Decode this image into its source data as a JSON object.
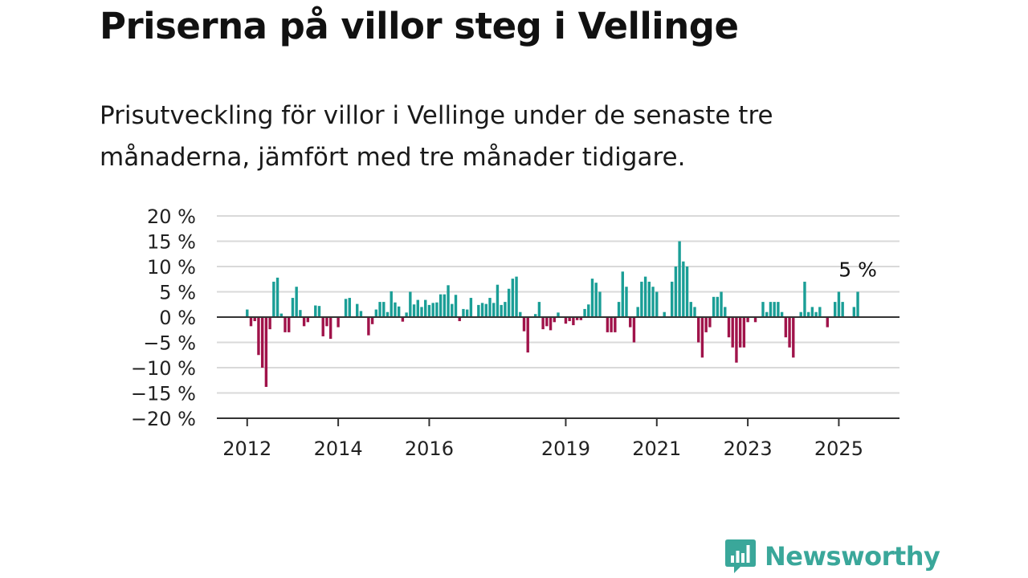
{
  "header": {
    "title": "Priserna på villor steg i Vellinge",
    "subtitle": "Prisutveckling för villor i Vellinge under de senaste tre månaderna, jämfört med tre månader tidigare."
  },
  "colors": {
    "positive": "#1a9e96",
    "negative": "#a0134a",
    "grid": "#d9d9d9",
    "axis": "#333333",
    "logo": "#3aa79a"
  },
  "brand": {
    "name": "Newsworthy",
    "icon": "bar-chart-speech-bubble-icon"
  },
  "chart_data": {
    "type": "bar",
    "title": "Priserna på villor steg i Vellinge",
    "ylabel": "",
    "xlabel": "",
    "ylim": [
      -20,
      20
    ],
    "yticks": [
      20,
      15,
      10,
      5,
      0,
      -5,
      -10,
      -15,
      -20
    ],
    "ytick_labels": [
      "20 %",
      "15 %",
      "10 %",
      "5 %",
      "0 %",
      "−5 %",
      "−10 %",
      "−15 %",
      "−20 %"
    ],
    "xlim": [
      "2011-05",
      "2026-05"
    ],
    "xticks": [
      {
        "date": "2012-01",
        "label": "2012"
      },
      {
        "date": "2014-01",
        "label": "2014"
      },
      {
        "date": "2016-01",
        "label": "2016"
      },
      {
        "date": "2019-01",
        "label": "2019"
      },
      {
        "date": "2021-01",
        "label": "2021"
      },
      {
        "date": "2023-01",
        "label": "2023"
      },
      {
        "date": "2025-01",
        "label": "2025"
      }
    ],
    "grid": true,
    "annotation": {
      "date": "2025-06",
      "label": "5 %"
    },
    "series": [
      {
        "points": [
          {
            "date": "2012-01",
            "value": 1.5
          },
          {
            "date": "2012-02",
            "value": -1.8
          },
          {
            "date": "2012-03",
            "value": -0.8
          },
          {
            "date": "2012-04",
            "value": -7.5
          },
          {
            "date": "2012-05",
            "value": -10.0
          },
          {
            "date": "2012-06",
            "value": -13.8
          },
          {
            "date": "2012-07",
            "value": -2.4
          },
          {
            "date": "2012-08",
            "value": 7.0
          },
          {
            "date": "2012-09",
            "value": 7.8
          },
          {
            "date": "2012-10",
            "value": 0.7
          },
          {
            "date": "2012-11",
            "value": -3.0
          },
          {
            "date": "2012-12",
            "value": -3.0
          },
          {
            "date": "2013-01",
            "value": 3.8
          },
          {
            "date": "2013-02",
            "value": 6.0
          },
          {
            "date": "2013-03",
            "value": 1.4
          },
          {
            "date": "2013-04",
            "value": -1.8
          },
          {
            "date": "2013-05",
            "value": -1.0
          },
          {
            "date": "2013-07",
            "value": 2.3
          },
          {
            "date": "2013-08",
            "value": 2.2
          },
          {
            "date": "2013-09",
            "value": -3.8
          },
          {
            "date": "2013-10",
            "value": -1.8
          },
          {
            "date": "2013-11",
            "value": -4.3
          },
          {
            "date": "2014-01",
            "value": -2.0
          },
          {
            "date": "2014-03",
            "value": 3.6
          },
          {
            "date": "2014-04",
            "value": 3.8
          },
          {
            "date": "2014-06",
            "value": 2.6
          },
          {
            "date": "2014-07",
            "value": 1.2
          },
          {
            "date": "2014-09",
            "value": -3.6
          },
          {
            "date": "2014-10",
            "value": -1.4
          },
          {
            "date": "2014-11",
            "value": 1.5
          },
          {
            "date": "2014-12",
            "value": 3.0
          },
          {
            "date": "2015-01",
            "value": 3.0
          },
          {
            "date": "2015-02",
            "value": 1.0
          },
          {
            "date": "2015-03",
            "value": 5.1
          },
          {
            "date": "2015-04",
            "value": 2.9
          },
          {
            "date": "2015-05",
            "value": 2.1
          },
          {
            "date": "2015-06",
            "value": -0.9
          },
          {
            "date": "2015-07",
            "value": 0.9
          },
          {
            "date": "2015-08",
            "value": 5.0
          },
          {
            "date": "2015-09",
            "value": 2.5
          },
          {
            "date": "2015-10",
            "value": 3.4
          },
          {
            "date": "2015-11",
            "value": 2.0
          },
          {
            "date": "2015-12",
            "value": 3.4
          },
          {
            "date": "2016-01",
            "value": 2.4
          },
          {
            "date": "2016-02",
            "value": 2.8
          },
          {
            "date": "2016-03",
            "value": 2.9
          },
          {
            "date": "2016-04",
            "value": 4.5
          },
          {
            "date": "2016-05",
            "value": 4.5
          },
          {
            "date": "2016-06",
            "value": 6.3
          },
          {
            "date": "2016-07",
            "value": 2.6
          },
          {
            "date": "2016-08",
            "value": 4.4
          },
          {
            "date": "2016-09",
            "value": -0.8
          },
          {
            "date": "2016-10",
            "value": 1.6
          },
          {
            "date": "2016-11",
            "value": 1.5
          },
          {
            "date": "2016-12",
            "value": 3.8
          },
          {
            "date": "2017-02",
            "value": 2.4
          },
          {
            "date": "2017-03",
            "value": 2.8
          },
          {
            "date": "2017-04",
            "value": 2.6
          },
          {
            "date": "2017-05",
            "value": 3.8
          },
          {
            "date": "2017-06",
            "value": 2.8
          },
          {
            "date": "2017-07",
            "value": 6.4
          },
          {
            "date": "2017-08",
            "value": 2.4
          },
          {
            "date": "2017-09",
            "value": 3.0
          },
          {
            "date": "2017-10",
            "value": 5.6
          },
          {
            "date": "2017-11",
            "value": 7.6
          },
          {
            "date": "2017-12",
            "value": 8.0
          },
          {
            "date": "2018-01",
            "value": 1.0
          },
          {
            "date": "2018-02",
            "value": -2.8
          },
          {
            "date": "2018-03",
            "value": -7.0
          },
          {
            "date": "2018-05",
            "value": 0.6
          },
          {
            "date": "2018-06",
            "value": 3.0
          },
          {
            "date": "2018-07",
            "value": -2.4
          },
          {
            "date": "2018-08",
            "value": -1.8
          },
          {
            "date": "2018-09",
            "value": -2.6
          },
          {
            "date": "2018-10",
            "value": -1.0
          },
          {
            "date": "2018-11",
            "value": 0.9
          },
          {
            "date": "2019-01",
            "value": -1.3
          },
          {
            "date": "2019-02",
            "value": -0.8
          },
          {
            "date": "2019-03",
            "value": -1.6
          },
          {
            "date": "2019-04",
            "value": -0.6
          },
          {
            "date": "2019-05",
            "value": -0.6
          },
          {
            "date": "2019-06",
            "value": 1.6
          },
          {
            "date": "2019-07",
            "value": 2.5
          },
          {
            "date": "2019-08",
            "value": 7.6
          },
          {
            "date": "2019-09",
            "value": 6.8
          },
          {
            "date": "2019-10",
            "value": 5.0
          },
          {
            "date": "2019-12",
            "value": -3.0
          },
          {
            "date": "2020-01",
            "value": -3.0
          },
          {
            "date": "2020-02",
            "value": -3.0
          },
          {
            "date": "2020-03",
            "value": 3.0
          },
          {
            "date": "2020-04",
            "value": 9.0
          },
          {
            "date": "2020-05",
            "value": 6.0
          },
          {
            "date": "2020-06",
            "value": -2.0
          },
          {
            "date": "2020-07",
            "value": -5.0
          },
          {
            "date": "2020-08",
            "value": 2.0
          },
          {
            "date": "2020-09",
            "value": 7.0
          },
          {
            "date": "2020-10",
            "value": 8.0
          },
          {
            "date": "2020-11",
            "value": 7.0
          },
          {
            "date": "2020-12",
            "value": 6.0
          },
          {
            "date": "2021-01",
            "value": 5.0
          },
          {
            "date": "2021-03",
            "value": 1.0
          },
          {
            "date": "2021-05",
            "value": 7.0
          },
          {
            "date": "2021-06",
            "value": 10.0
          },
          {
            "date": "2021-07",
            "value": 15.0
          },
          {
            "date": "2021-08",
            "value": 11.0
          },
          {
            "date": "2021-09",
            "value": 10.0
          },
          {
            "date": "2021-10",
            "value": 3.0
          },
          {
            "date": "2021-11",
            "value": 2.0
          },
          {
            "date": "2021-12",
            "value": -5.0
          },
          {
            "date": "2022-01",
            "value": -8.0
          },
          {
            "date": "2022-02",
            "value": -3.0
          },
          {
            "date": "2022-03",
            "value": -2.0
          },
          {
            "date": "2022-04",
            "value": 4.0
          },
          {
            "date": "2022-05",
            "value": 4.0
          },
          {
            "date": "2022-06",
            "value": 5.0
          },
          {
            "date": "2022-07",
            "value": 2.0
          },
          {
            "date": "2022-08",
            "value": -4.0
          },
          {
            "date": "2022-09",
            "value": -6.0
          },
          {
            "date": "2022-10",
            "value": -9.0
          },
          {
            "date": "2022-11",
            "value": -6.0
          },
          {
            "date": "2022-12",
            "value": -6.0
          },
          {
            "date": "2023-01",
            "value": -1.0
          },
          {
            "date": "2023-03",
            "value": -1.0
          },
          {
            "date": "2023-05",
            "value": 3.0
          },
          {
            "date": "2023-06",
            "value": 1.0
          },
          {
            "date": "2023-07",
            "value": 3.0
          },
          {
            "date": "2023-08",
            "value": 3.0
          },
          {
            "date": "2023-09",
            "value": 3.0
          },
          {
            "date": "2023-10",
            "value": 1.0
          },
          {
            "date": "2023-11",
            "value": -4.0
          },
          {
            "date": "2023-12",
            "value": -6.0
          },
          {
            "date": "2024-01",
            "value": -8.0
          },
          {
            "date": "2024-03",
            "value": 1.0
          },
          {
            "date": "2024-04",
            "value": 7.0
          },
          {
            "date": "2024-05",
            "value": 1.0
          },
          {
            "date": "2024-06",
            "value": 2.0
          },
          {
            "date": "2024-07",
            "value": 1.0
          },
          {
            "date": "2024-08",
            "value": 2.0
          },
          {
            "date": "2024-10",
            "value": -2.0
          },
          {
            "date": "2024-12",
            "value": 3.0
          },
          {
            "date": "2025-01",
            "value": 5.0
          },
          {
            "date": "2025-02",
            "value": 3.0
          },
          {
            "date": "2025-05",
            "value": 2.0
          },
          {
            "date": "2025-06",
            "value": 5.0
          }
        ]
      }
    ]
  }
}
